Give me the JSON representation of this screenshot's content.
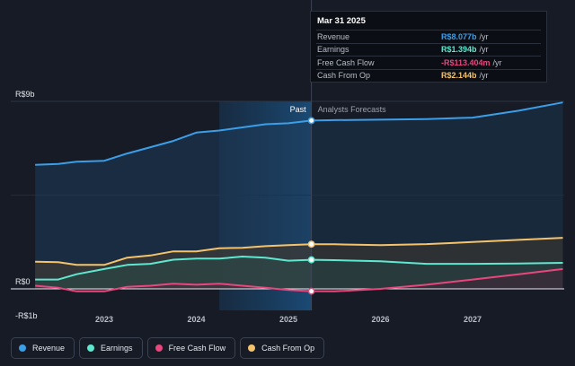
{
  "tooltip": {
    "date": "Mar 31 2025",
    "rows": [
      {
        "label": "Revenue",
        "value": "R$8.077b",
        "unit": "/yr",
        "color": "#3b9ee8"
      },
      {
        "label": "Earnings",
        "value": "R$1.394b",
        "unit": "/yr",
        "color": "#5ee8d0"
      },
      {
        "label": "Free Cash Flow",
        "value": "-R$113.404m",
        "unit": "/yr",
        "color": "#e8467c"
      },
      {
        "label": "Cash From Op",
        "value": "R$2.144b",
        "unit": "/yr",
        "color": "#f5c36b"
      }
    ]
  },
  "section_labels": {
    "past": "Past",
    "forecast": "Analysts Forecasts"
  },
  "legend": [
    {
      "label": "Revenue",
      "color": "#3b9ee8"
    },
    {
      "label": "Earnings",
      "color": "#5ee8d0"
    },
    {
      "label": "Free Cash Flow",
      "color": "#e8467c"
    },
    {
      "label": "Cash From Op",
      "color": "#f5c36b"
    }
  ],
  "chart_data": {
    "type": "line",
    "title": "",
    "xlabel": "",
    "ylabel": "",
    "y_unit": "R$ billions",
    "x_range": [
      2022.16,
      2027.98
    ],
    "ylim": [
      -1,
      9
    ],
    "y_tick_labels": [
      {
        "value": 9,
        "label": "R$9b"
      },
      {
        "value": 0,
        "label": "R$0"
      },
      {
        "value": -1,
        "label": "-R$1b"
      }
    ],
    "x_tick_labels": [
      {
        "value": 2023,
        "label": "2023"
      },
      {
        "value": 2024,
        "label": "2024"
      },
      {
        "value": 2025,
        "label": "2025"
      },
      {
        "value": 2026,
        "label": "2026"
      },
      {
        "value": 2027,
        "label": "2027"
      }
    ],
    "past_highlight_start": 2024.25,
    "divider_x": 2025.25,
    "series": [
      {
        "name": "Revenue",
        "color": "#3b9ee8",
        "points": [
          [
            2022.25,
            5.95
          ],
          [
            2022.5,
            6.0
          ],
          [
            2022.7,
            6.1
          ],
          [
            2023.0,
            6.15
          ],
          [
            2023.25,
            6.5
          ],
          [
            2023.5,
            6.8
          ],
          [
            2023.75,
            7.1
          ],
          [
            2024.0,
            7.5
          ],
          [
            2024.25,
            7.6
          ],
          [
            2024.5,
            7.75
          ],
          [
            2024.75,
            7.9
          ],
          [
            2025.0,
            7.95
          ],
          [
            2025.25,
            8.077
          ],
          [
            2025.5,
            8.1
          ],
          [
            2026.0,
            8.12
          ],
          [
            2026.5,
            8.15
          ],
          [
            2027.0,
            8.22
          ],
          [
            2027.5,
            8.55
          ],
          [
            2027.98,
            8.95
          ]
        ]
      },
      {
        "name": "Earnings",
        "color": "#5ee8d0",
        "points": [
          [
            2022.25,
            0.45
          ],
          [
            2022.5,
            0.45
          ],
          [
            2022.7,
            0.7
          ],
          [
            2023.0,
            0.95
          ],
          [
            2023.25,
            1.15
          ],
          [
            2023.5,
            1.2
          ],
          [
            2023.75,
            1.4
          ],
          [
            2024.0,
            1.45
          ],
          [
            2024.25,
            1.45
          ],
          [
            2024.5,
            1.55
          ],
          [
            2024.75,
            1.5
          ],
          [
            2025.0,
            1.35
          ],
          [
            2025.25,
            1.394
          ],
          [
            2025.5,
            1.38
          ],
          [
            2026.0,
            1.32
          ],
          [
            2026.5,
            1.2
          ],
          [
            2027.0,
            1.2
          ],
          [
            2027.5,
            1.22
          ],
          [
            2027.98,
            1.25
          ]
        ]
      },
      {
        "name": "Free Cash Flow",
        "color": "#e8467c",
        "points": [
          [
            2022.25,
            0.15
          ],
          [
            2022.5,
            0.05
          ],
          [
            2022.7,
            -0.12
          ],
          [
            2023.0,
            -0.12
          ],
          [
            2023.25,
            0.1
          ],
          [
            2023.5,
            0.15
          ],
          [
            2023.75,
            0.25
          ],
          [
            2024.0,
            0.2
          ],
          [
            2024.25,
            0.25
          ],
          [
            2024.5,
            0.15
          ],
          [
            2024.75,
            0.05
          ],
          [
            2025.0,
            -0.05
          ],
          [
            2025.25,
            -0.113
          ],
          [
            2025.5,
            -0.12
          ],
          [
            2026.0,
            0.0
          ],
          [
            2026.5,
            0.2
          ],
          [
            2027.0,
            0.45
          ],
          [
            2027.5,
            0.7
          ],
          [
            2027.98,
            0.95
          ]
        ]
      },
      {
        "name": "Cash From Op",
        "color": "#f5c36b",
        "points": [
          [
            2022.25,
            1.3
          ],
          [
            2022.5,
            1.28
          ],
          [
            2022.7,
            1.15
          ],
          [
            2023.0,
            1.15
          ],
          [
            2023.25,
            1.5
          ],
          [
            2023.5,
            1.6
          ],
          [
            2023.75,
            1.8
          ],
          [
            2024.0,
            1.8
          ],
          [
            2024.25,
            1.95
          ],
          [
            2024.5,
            1.97
          ],
          [
            2024.75,
            2.05
          ],
          [
            2025.0,
            2.1
          ],
          [
            2025.25,
            2.144
          ],
          [
            2025.5,
            2.14
          ],
          [
            2026.0,
            2.1
          ],
          [
            2026.5,
            2.15
          ],
          [
            2027.0,
            2.25
          ],
          [
            2027.5,
            2.35
          ],
          [
            2027.98,
            2.45
          ]
        ]
      }
    ]
  }
}
